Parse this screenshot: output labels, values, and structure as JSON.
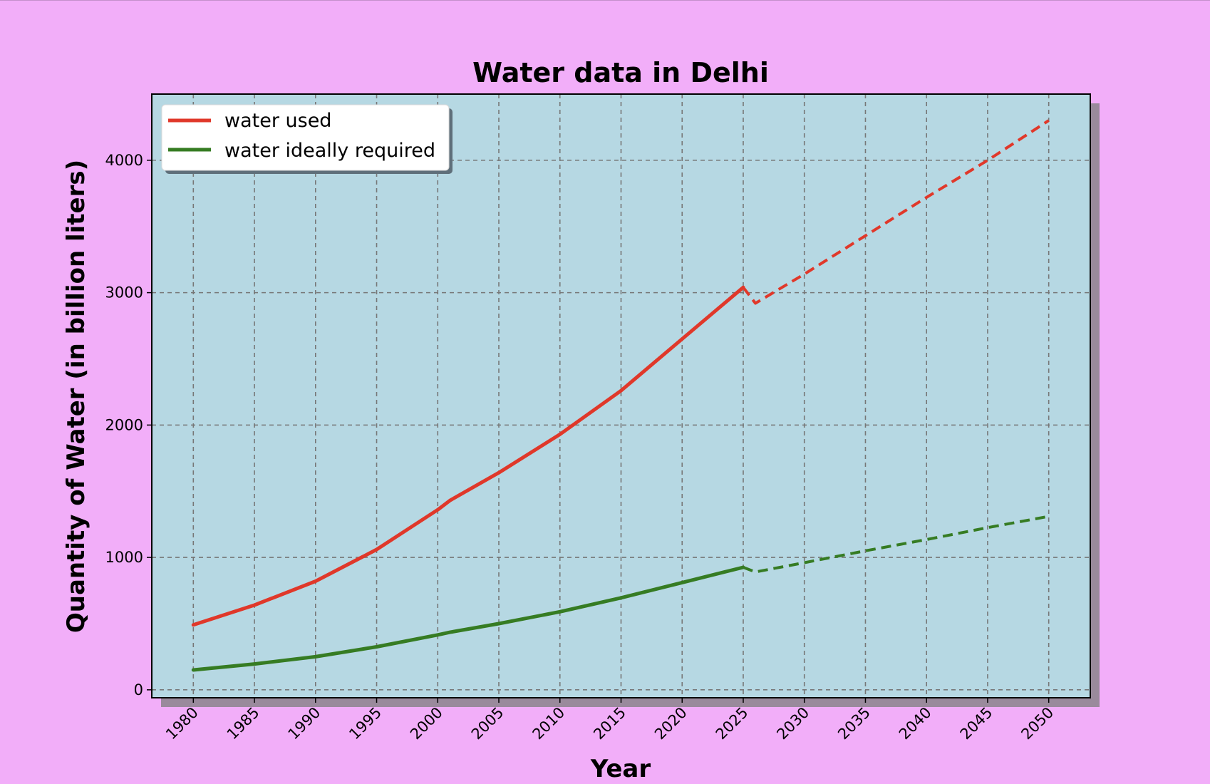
{
  "chart_data": {
    "type": "line",
    "title": "Water data in Delhi",
    "xlabel": "Year",
    "ylabel": "Quantity of Water (in billion liters)",
    "xlim": [
      1976.6,
      2053.4
    ],
    "ylim": [
      -60,
      4500
    ],
    "x_ticks": [
      1980,
      1985,
      1990,
      1995,
      2000,
      2005,
      2010,
      2015,
      2020,
      2025,
      2030,
      2035,
      2040,
      2045,
      2050
    ],
    "y_ticks": [
      0,
      1000,
      2000,
      3000,
      4000
    ],
    "x_tick_labels": [
      "1980",
      "1985",
      "1990",
      "1995",
      "2000",
      "2005",
      "2010",
      "2015",
      "2020",
      "2025",
      "2030",
      "2035",
      "2040",
      "2045",
      "2050"
    ],
    "y_tick_labels": [
      "0",
      "1000",
      "2000",
      "3000",
      "4000"
    ],
    "grid": true,
    "legend_position": "upper-left",
    "colors": {
      "figure_background": "#f2aef9",
      "plot_background": "#b6d8e3",
      "shadow": "#9a8a9c",
      "grid": "#777777",
      "water_used": "#e0382a",
      "water_required": "#367c23"
    },
    "series": [
      {
        "name": "water used",
        "color": "#e0382a",
        "style": "solid",
        "x": [
          1980,
          1985,
          1990,
          1995,
          2000,
          2001,
          2005,
          2010,
          2015,
          2020,
          2025
        ],
        "y": [
          490,
          640,
          820,
          1060,
          1360,
          1430,
          1640,
          1930,
          2260,
          2650,
          3040
        ]
      },
      {
        "name": "water used",
        "color": "#e0382a",
        "style": "dashed",
        "x": [
          2025,
          2026,
          2030,
          2035,
          2040,
          2045,
          2050
        ],
        "y": [
          3040,
          2920,
          3140,
          3430,
          3720,
          4000,
          4300
        ]
      },
      {
        "name": "water ideally required",
        "color": "#367c23",
        "style": "solid",
        "x": [
          1980,
          1985,
          1990,
          1995,
          2000,
          2001,
          2005,
          2010,
          2015,
          2020,
          2025
        ],
        "y": [
          150,
          195,
          250,
          325,
          415,
          435,
          500,
          590,
          695,
          810,
          925
        ]
      },
      {
        "name": "water ideally required",
        "color": "#367c23",
        "style": "dashed",
        "x": [
          2025,
          2026,
          2030,
          2035,
          2040,
          2045,
          2050
        ],
        "y": [
          925,
          890,
          960,
          1050,
          1135,
          1225,
          1310
        ]
      }
    ],
    "legend": [
      {
        "label": "water used",
        "color": "#e0382a"
      },
      {
        "label": "water ideally required",
        "color": "#367c23"
      }
    ]
  }
}
